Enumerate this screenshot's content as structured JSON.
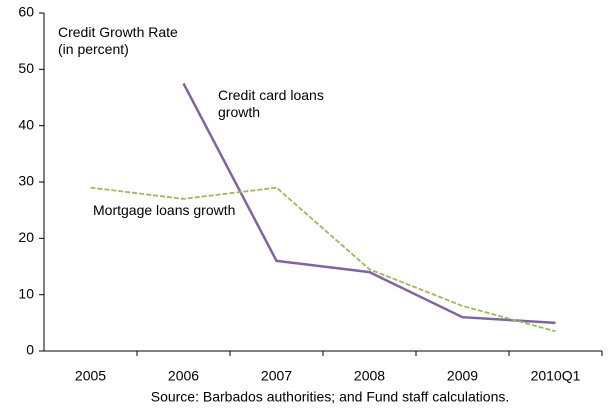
{
  "chart_data": {
    "type": "line",
    "title": "Credit Growth Rate",
    "subtitle": "(in percent)",
    "note": "Source: Barbados authorities; and Fund staff calculations.",
    "categories": [
      "2005",
      "2006",
      "2007",
      "2008",
      "2009",
      "2010Q1"
    ],
    "series": [
      {
        "name": "Credit card loans growth",
        "color": "#8064a2",
        "dash": false,
        "values": [
          null,
          47.5,
          16,
          14,
          6,
          5
        ]
      },
      {
        "name": "Mortgage loans growth",
        "color": "#9bbb59",
        "dash": true,
        "values": [
          29,
          27,
          29,
          14.5,
          8,
          3.5
        ]
      }
    ],
    "ylim": [
      0,
      60
    ],
    "yticks": [
      0,
      10,
      20,
      30,
      40,
      50,
      60
    ],
    "grid": false
  }
}
